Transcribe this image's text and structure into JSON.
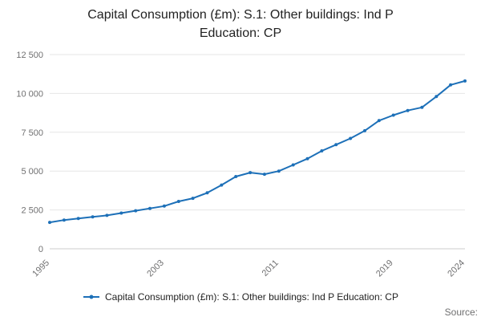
{
  "title": {
    "line1": "Capital Consumption (£m): S.1: Other buildings: Ind P",
    "line2": "Education: CP"
  },
  "legend": {
    "label": "Capital Consumption (£m): S.1: Other buildings: Ind P Education: CP"
  },
  "footer": {
    "source_label": "Source:"
  },
  "colors": {
    "series": "#1d70b8",
    "grid": "#e6e6e6",
    "axis": "#cccccc",
    "tick_text": "#707071"
  },
  "chart_data": {
    "type": "line",
    "title": "Capital Consumption (£m): S.1: Other buildings: Ind P Education: CP",
    "xlabel": "",
    "ylabel": "",
    "grid": true,
    "legend_position": "bottom",
    "ylim": [
      0,
      12500
    ],
    "yticks": [
      0,
      2500,
      5000,
      7500,
      10000,
      12500
    ],
    "ytick_labels": [
      "0",
      "2 500",
      "5 000",
      "7 500",
      "10 000",
      "12 500"
    ],
    "xticks": [
      1995,
      2003,
      2011,
      2019,
      2024
    ],
    "x": [
      1995,
      1996,
      1997,
      1998,
      1999,
      2000,
      2001,
      2002,
      2003,
      2004,
      2005,
      2006,
      2007,
      2008,
      2009,
      2010,
      2011,
      2012,
      2013,
      2014,
      2015,
      2016,
      2017,
      2018,
      2019,
      2020,
      2021,
      2022,
      2023,
      2024
    ],
    "series": [
      {
        "name": "Capital Consumption (£m): S.1: Other buildings: Ind P Education: CP",
        "values": [
          1700,
          1850,
          1950,
          2050,
          2150,
          2300,
          2450,
          2600,
          2750,
          3050,
          3250,
          3600,
          4100,
          4650,
          4900,
          4800,
          5000,
          5400,
          5800,
          6300,
          6700,
          7100,
          7600,
          8250,
          8600,
          8900,
          9100,
          9800,
          10550,
          10800
        ]
      }
    ]
  }
}
